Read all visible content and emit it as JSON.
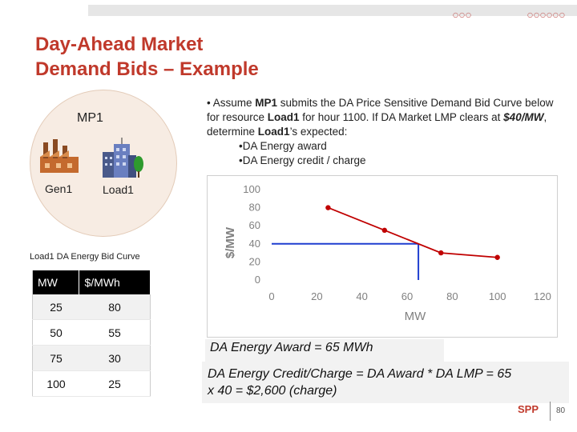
{
  "header": {
    "dots_left": "○○○",
    "dots_right": "○○○○○○",
    "title_line1": "Day-Ahead Market",
    "title_line2": "Demand Bids – Example"
  },
  "intro": {
    "bullet": "•",
    "t1": "Assume ",
    "mp": "MP1",
    "t2": " submits the DA Price Sensitive Demand Bid Curve below for resource ",
    "load": "Load1",
    "t3": " for hour 1100. If DA Market LMP clears at ",
    "price": "$40/MW",
    "t4": ", determine ",
    "load2": "Load1",
    "t5": "’s expected:",
    "sub1": "•DA Energy award",
    "sub2": "•DA Energy credit / charge"
  },
  "diagram": {
    "mp_label": "MP1",
    "gen_label": "Gen1",
    "load_label": "Load1",
    "colors": {
      "circle": "#f7ece3",
      "building": "#6a7fc0",
      "tree": "#2e9a2e",
      "factory": "#c46a2e"
    }
  },
  "bid_table": {
    "caption": "Load1 DA Energy  Bid Curve",
    "headers": [
      "MW",
      "$/MWh"
    ],
    "rows": [
      [
        "25",
        "80"
      ],
      [
        "50",
        "55"
      ],
      [
        "75",
        "30"
      ],
      [
        "100",
        "25"
      ]
    ]
  },
  "chart_data": {
    "type": "line",
    "xlabel": "MW",
    "ylabel": "$/MW",
    "xlim": [
      0,
      120
    ],
    "ylim": [
      0,
      100
    ],
    "xticks": [
      0,
      20,
      40,
      60,
      80,
      100,
      120
    ],
    "yticks": [
      0,
      20,
      40,
      60,
      80,
      100
    ],
    "series": [
      {
        "x": [
          25,
          50,
          75,
          100
        ],
        "y": [
          80,
          55,
          30,
          25
        ]
      }
    ],
    "marker_line": {
      "y": 40,
      "x": 65
    },
    "grid": false,
    "colors": {
      "series": "#c00000",
      "marker": "#1f3fd0"
    }
  },
  "results": {
    "award": "DA Energy Award = 65 MWh",
    "credit_line1": "DA Energy Credit/Charge = DA Award * DA LMP = 65",
    "credit_line2": "x 40 = $2,600 (charge)"
  },
  "footer": {
    "logo": "SPP",
    "page": "80"
  }
}
